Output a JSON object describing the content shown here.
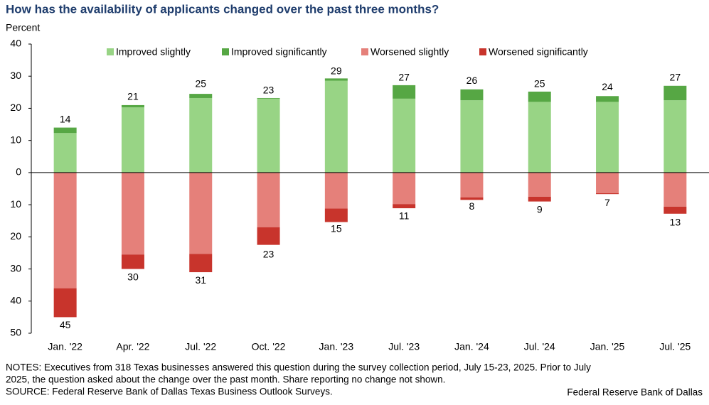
{
  "chart_data": {
    "type": "bar",
    "stacked": true,
    "title": "How has the availability of applicants changed over the past three months?",
    "ylabel": "Percent",
    "categories": [
      "Jan. '22",
      "Apr. '22",
      "Jul. '22",
      "Oct. '22",
      "Jan. '23",
      "Jul. '23",
      "Jan. '24",
      "Jul. '24",
      "Jan. '25",
      "Jul. '25"
    ],
    "series": [
      {
        "name": "Improved slightly",
        "color": "#98d485",
        "values": [
          12.3,
          20.3,
          23.2,
          23.0,
          28.6,
          23.0,
          22.5,
          22.0,
          22.0,
          22.5
        ]
      },
      {
        "name": "Improved significantly",
        "color": "#56a744",
        "values": [
          1.7,
          0.7,
          1.3,
          0.2,
          0.7,
          4.2,
          3.4,
          3.2,
          1.8,
          4.5
        ]
      },
      {
        "name": "Worsened slightly",
        "color": "#e5807a",
        "values": [
          -36.0,
          -25.5,
          -25.3,
          -17.0,
          -11.2,
          -9.8,
          -7.7,
          -7.5,
          -6.4,
          -10.6
        ]
      },
      {
        "name": "Worsened significantly",
        "color": "#c8342c",
        "values": [
          -9.0,
          -4.5,
          -5.7,
          -5.5,
          -4.2,
          -1.3,
          -0.8,
          -1.5,
          -0.3,
          -2.2
        ]
      }
    ],
    "totals": [
      {
        "values": [
          14,
          21,
          25,
          23,
          29,
          27,
          26,
          25,
          24,
          27
        ]
      },
      {
        "values": [
          -45,
          -30,
          -31,
          -23,
          -15,
          -11,
          -8,
          -9,
          -7,
          -13
        ],
        "value_labels": [
          "45",
          "30",
          "31",
          "23",
          "15",
          "11",
          "8",
          "9",
          "7",
          "13"
        ]
      }
    ],
    "ylim": [
      -50,
      40
    ],
    "yticks": [
      {
        "value": -50,
        "label": "50"
      },
      {
        "value": -40,
        "label": "40"
      },
      {
        "value": -30,
        "label": "30"
      },
      {
        "value": -20,
        "label": "20"
      },
      {
        "value": -10,
        "label": "10"
      },
      0,
      10,
      20,
      30,
      40
    ],
    "legend": "top",
    "notes": [
      "NOTES: Executives from 318 Texas businesses answered this question during the survey collection period, July 15-23, 2025. Prior to July",
      "2025, the question asked about the change over the past month.  Share reporting no change not shown.",
      "SOURCE: Federal Reserve Bank of Dallas Texas Business Outlook Surveys."
    ],
    "credit": "Federal Reserve Bank of Dallas"
  }
}
